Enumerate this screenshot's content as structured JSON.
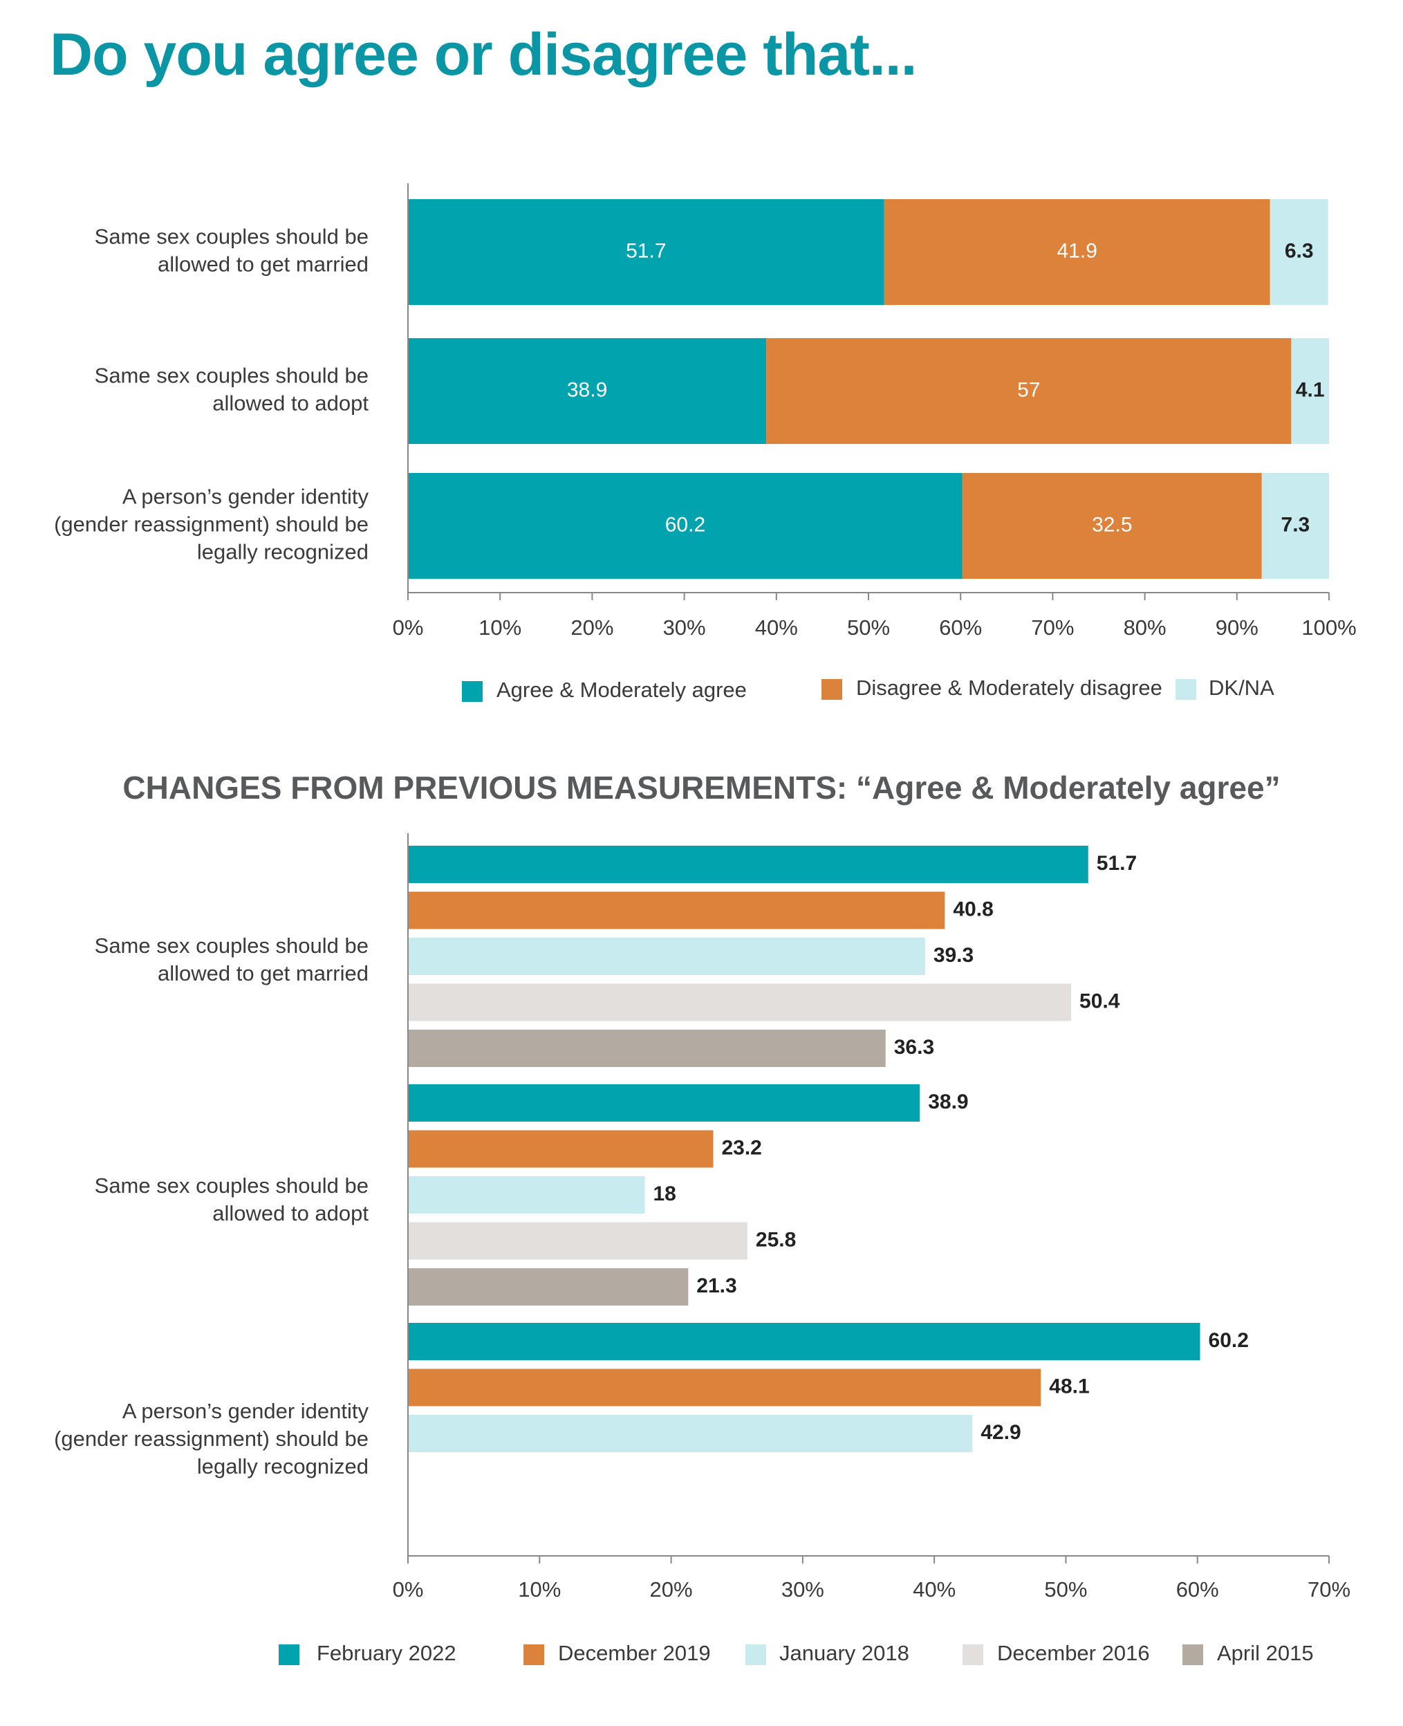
{
  "page": {
    "title": "Do you agree or disagree that...",
    "section2_title": "CHANGES FROM PREVIOUS MEASUREMENTS: “Agree & Moderately agree”"
  },
  "colors": {
    "teal": "#00a3ae",
    "orange": "#dd823b",
    "light_blue": "#c7ebee",
    "light_gray": "#e2dfdc",
    "gray": "#b3aba1",
    "title": "#0b96a5",
    "subtitle": "#58595b",
    "text": "#333333",
    "axis": "#888888"
  },
  "chart_data": [
    {
      "type": "bar",
      "orientation": "horizontal",
      "stacked": true,
      "categories": [
        [
          "Same sex couples should be",
          "allowed to get married"
        ],
        [
          "Same sex couples should be",
          "allowed to adopt"
        ],
        [
          "A person’s gender identity",
          "(gender reassignment) should be",
          "legally recognized"
        ]
      ],
      "series": [
        {
          "name": "Agree & Moderately agree",
          "color": "#00a3ae",
          "label_color": "#ffffff",
          "values": [
            51.7,
            38.9,
            60.2
          ]
        },
        {
          "name": "Disagree & Moderately disagree",
          "color": "#dd823b",
          "label_color": "#ffffff",
          "values": [
            41.9,
            57,
            32.5
          ]
        },
        {
          "name": "DK/NA",
          "color": "#c7ebee",
          "label_color": "#222222",
          "values": [
            6.3,
            4.1,
            7.3
          ]
        }
      ],
      "xlim": [
        0,
        100
      ],
      "ticks": [
        "0%",
        "10%",
        "20%",
        "30%",
        "40%",
        "50%",
        "60%",
        "70%",
        "80%",
        "90%",
        "100%"
      ],
      "legend_position": "bottom",
      "grid": false
    },
    {
      "type": "bar",
      "orientation": "horizontal",
      "stacked": false,
      "title": "CHANGES FROM PREVIOUS MEASUREMENTS: “Agree & Moderately agree”",
      "categories": [
        [
          "Same sex couples should be",
          "allowed to get married"
        ],
        [
          "Same sex couples should be",
          "allowed to adopt"
        ],
        [
          "A person’s gender identity",
          "(gender reassignment) should be",
          "legally recognized"
        ]
      ],
      "series": [
        {
          "name": "February 2022",
          "color": "#00a3ae",
          "values": [
            51.7,
            38.9,
            60.2
          ]
        },
        {
          "name": "December 2019",
          "color": "#dd823b",
          "values": [
            40.8,
            23.2,
            48.1
          ]
        },
        {
          "name": "January 2018",
          "color": "#c7ebee",
          "values": [
            39.3,
            18,
            42.9
          ]
        },
        {
          "name": "December 2016",
          "color": "#e2dfdc",
          "values": [
            50.4,
            25.8,
            null
          ]
        },
        {
          "name": "April 2015",
          "color": "#b3aba1",
          "values": [
            36.3,
            21.3,
            null
          ]
        }
      ],
      "xlim": [
        0,
        70
      ],
      "ticks": [
        "0%",
        "10%",
        "20%",
        "30%",
        "40%",
        "50%",
        "60%",
        "70%"
      ],
      "legend_position": "bottom",
      "grid": false
    }
  ]
}
